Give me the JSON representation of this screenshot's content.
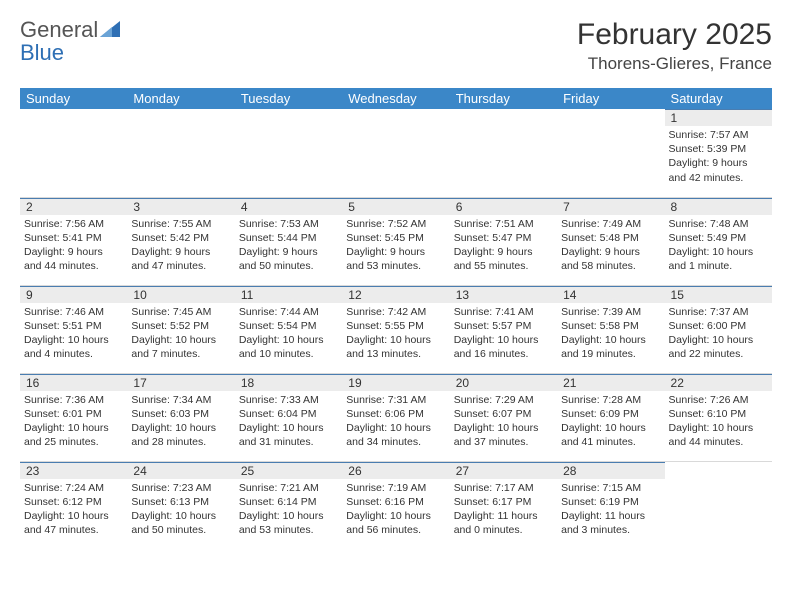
{
  "logo": {
    "text1": "General",
    "text2": "Blue"
  },
  "title": "February 2025",
  "location": "Thorens-Glieres, France",
  "colors": {
    "header_bg": "#3b87c8",
    "header_text": "#ffffff",
    "daynum_bg": "#ececec",
    "border_top": "#4a7db0",
    "logo_gray": "#555555",
    "logo_blue": "#2e6fb4"
  },
  "weekdays": [
    "Sunday",
    "Monday",
    "Tuesday",
    "Wednesday",
    "Thursday",
    "Friday",
    "Saturday"
  ],
  "weeks": [
    [
      null,
      null,
      null,
      null,
      null,
      null,
      {
        "n": "1",
        "sr": "Sunrise: 7:57 AM",
        "ss": "Sunset: 5:39 PM",
        "d1": "Daylight: 9 hours",
        "d2": "and 42 minutes."
      }
    ],
    [
      {
        "n": "2",
        "sr": "Sunrise: 7:56 AM",
        "ss": "Sunset: 5:41 PM",
        "d1": "Daylight: 9 hours",
        "d2": "and 44 minutes."
      },
      {
        "n": "3",
        "sr": "Sunrise: 7:55 AM",
        "ss": "Sunset: 5:42 PM",
        "d1": "Daylight: 9 hours",
        "d2": "and 47 minutes."
      },
      {
        "n": "4",
        "sr": "Sunrise: 7:53 AM",
        "ss": "Sunset: 5:44 PM",
        "d1": "Daylight: 9 hours",
        "d2": "and 50 minutes."
      },
      {
        "n": "5",
        "sr": "Sunrise: 7:52 AM",
        "ss": "Sunset: 5:45 PM",
        "d1": "Daylight: 9 hours",
        "d2": "and 53 minutes."
      },
      {
        "n": "6",
        "sr": "Sunrise: 7:51 AM",
        "ss": "Sunset: 5:47 PM",
        "d1": "Daylight: 9 hours",
        "d2": "and 55 minutes."
      },
      {
        "n": "7",
        "sr": "Sunrise: 7:49 AM",
        "ss": "Sunset: 5:48 PM",
        "d1": "Daylight: 9 hours",
        "d2": "and 58 minutes."
      },
      {
        "n": "8",
        "sr": "Sunrise: 7:48 AM",
        "ss": "Sunset: 5:49 PM",
        "d1": "Daylight: 10 hours",
        "d2": "and 1 minute."
      }
    ],
    [
      {
        "n": "9",
        "sr": "Sunrise: 7:46 AM",
        "ss": "Sunset: 5:51 PM",
        "d1": "Daylight: 10 hours",
        "d2": "and 4 minutes."
      },
      {
        "n": "10",
        "sr": "Sunrise: 7:45 AM",
        "ss": "Sunset: 5:52 PM",
        "d1": "Daylight: 10 hours",
        "d2": "and 7 minutes."
      },
      {
        "n": "11",
        "sr": "Sunrise: 7:44 AM",
        "ss": "Sunset: 5:54 PM",
        "d1": "Daylight: 10 hours",
        "d2": "and 10 minutes."
      },
      {
        "n": "12",
        "sr": "Sunrise: 7:42 AM",
        "ss": "Sunset: 5:55 PM",
        "d1": "Daylight: 10 hours",
        "d2": "and 13 minutes."
      },
      {
        "n": "13",
        "sr": "Sunrise: 7:41 AM",
        "ss": "Sunset: 5:57 PM",
        "d1": "Daylight: 10 hours",
        "d2": "and 16 minutes."
      },
      {
        "n": "14",
        "sr": "Sunrise: 7:39 AM",
        "ss": "Sunset: 5:58 PM",
        "d1": "Daylight: 10 hours",
        "d2": "and 19 minutes."
      },
      {
        "n": "15",
        "sr": "Sunrise: 7:37 AM",
        "ss": "Sunset: 6:00 PM",
        "d1": "Daylight: 10 hours",
        "d2": "and 22 minutes."
      }
    ],
    [
      {
        "n": "16",
        "sr": "Sunrise: 7:36 AM",
        "ss": "Sunset: 6:01 PM",
        "d1": "Daylight: 10 hours",
        "d2": "and 25 minutes."
      },
      {
        "n": "17",
        "sr": "Sunrise: 7:34 AM",
        "ss": "Sunset: 6:03 PM",
        "d1": "Daylight: 10 hours",
        "d2": "and 28 minutes."
      },
      {
        "n": "18",
        "sr": "Sunrise: 7:33 AM",
        "ss": "Sunset: 6:04 PM",
        "d1": "Daylight: 10 hours",
        "d2": "and 31 minutes."
      },
      {
        "n": "19",
        "sr": "Sunrise: 7:31 AM",
        "ss": "Sunset: 6:06 PM",
        "d1": "Daylight: 10 hours",
        "d2": "and 34 minutes."
      },
      {
        "n": "20",
        "sr": "Sunrise: 7:29 AM",
        "ss": "Sunset: 6:07 PM",
        "d1": "Daylight: 10 hours",
        "d2": "and 37 minutes."
      },
      {
        "n": "21",
        "sr": "Sunrise: 7:28 AM",
        "ss": "Sunset: 6:09 PM",
        "d1": "Daylight: 10 hours",
        "d2": "and 41 minutes."
      },
      {
        "n": "22",
        "sr": "Sunrise: 7:26 AM",
        "ss": "Sunset: 6:10 PM",
        "d1": "Daylight: 10 hours",
        "d2": "and 44 minutes."
      }
    ],
    [
      {
        "n": "23",
        "sr": "Sunrise: 7:24 AM",
        "ss": "Sunset: 6:12 PM",
        "d1": "Daylight: 10 hours",
        "d2": "and 47 minutes."
      },
      {
        "n": "24",
        "sr": "Sunrise: 7:23 AM",
        "ss": "Sunset: 6:13 PM",
        "d1": "Daylight: 10 hours",
        "d2": "and 50 minutes."
      },
      {
        "n": "25",
        "sr": "Sunrise: 7:21 AM",
        "ss": "Sunset: 6:14 PM",
        "d1": "Daylight: 10 hours",
        "d2": "and 53 minutes."
      },
      {
        "n": "26",
        "sr": "Sunrise: 7:19 AM",
        "ss": "Sunset: 6:16 PM",
        "d1": "Daylight: 10 hours",
        "d2": "and 56 minutes."
      },
      {
        "n": "27",
        "sr": "Sunrise: 7:17 AM",
        "ss": "Sunset: 6:17 PM",
        "d1": "Daylight: 11 hours",
        "d2": "and 0 minutes."
      },
      {
        "n": "28",
        "sr": "Sunrise: 7:15 AM",
        "ss": "Sunset: 6:19 PM",
        "d1": "Daylight: 11 hours",
        "d2": "and 3 minutes."
      },
      null
    ]
  ]
}
